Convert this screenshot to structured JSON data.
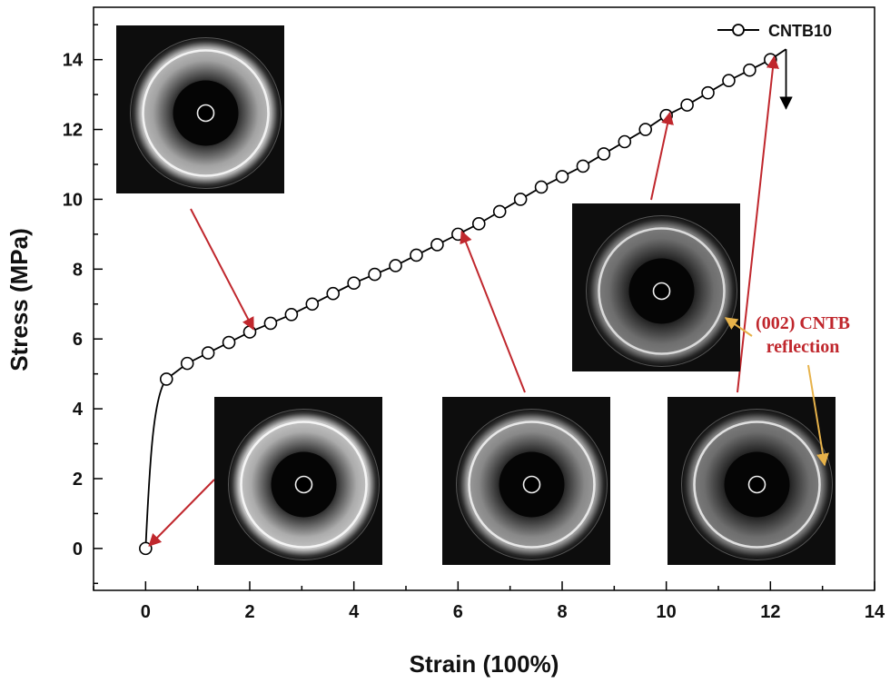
{
  "chart_data": {
    "type": "line",
    "xlabel": "Strain (100%)",
    "ylabel": "Stress (MPa)",
    "xlim": [
      -1,
      14
    ],
    "ylim": [
      -1.2,
      15.5
    ],
    "xticks": [
      0,
      2,
      4,
      6,
      8,
      10,
      12,
      14
    ],
    "yticks": [
      0,
      2,
      4,
      6,
      8,
      10,
      12,
      14
    ],
    "grid": false,
    "legend_position": "top-right",
    "series": [
      {
        "name": "CNTB10",
        "marker": "open-circle",
        "color": "#000000",
        "x": [
          0,
          0.4,
          0.8,
          1.2,
          1.6,
          2.0,
          2.4,
          2.8,
          3.2,
          3.6,
          4.0,
          4.4,
          4.8,
          5.2,
          5.6,
          6.0,
          6.4,
          6.8,
          7.2,
          7.6,
          8.0,
          8.4,
          8.8,
          9.2,
          9.6,
          10.0,
          10.4,
          10.8,
          11.2,
          11.6,
          12.0
        ],
        "y": [
          0,
          4.85,
          5.3,
          5.6,
          5.9,
          6.2,
          6.45,
          6.7,
          7.0,
          7.3,
          7.6,
          7.85,
          8.1,
          8.4,
          8.7,
          9.0,
          9.3,
          9.65,
          10.0,
          10.35,
          10.65,
          10.95,
          11.3,
          11.65,
          12.0,
          12.4,
          12.7,
          13.05,
          13.4,
          13.7,
          14.0
        ]
      }
    ],
    "fracture": {
      "x": 12.3,
      "y_top": 14.3,
      "y_bottom": 12.6
    },
    "annotation": {
      "line1": "(002) CNTB",
      "line2": "reflection"
    },
    "colors": {
      "line": "#000000",
      "arrow": "#c0272d",
      "annotation_arrow": "#e7b24a",
      "inset_bg": "#0d0d0d"
    },
    "insets": [
      {
        "name": "diffraction-inset-top-left",
        "ring": "#f2f2f2",
        "halo_strength": 0.85,
        "target": [
          2.0,
          6.2
        ]
      },
      {
        "name": "diffraction-inset-initial",
        "ring": "#f5f5f5",
        "halo_strength": 0.9,
        "target": [
          0,
          0
        ]
      },
      {
        "name": "diffraction-inset-strain-6",
        "ring": "#e8e8e8",
        "halo_strength": 0.7,
        "target": [
          6.0,
          9.0
        ]
      },
      {
        "name": "diffraction-inset-strain-10",
        "ring": "#dadada",
        "halo_strength": 0.55,
        "target": [
          10.0,
          12.4
        ]
      },
      {
        "name": "diffraction-inset-strain-12",
        "ring": "#e0e0e0",
        "halo_strength": 0.55,
        "target": [
          12.0,
          14.0
        ]
      }
    ]
  }
}
